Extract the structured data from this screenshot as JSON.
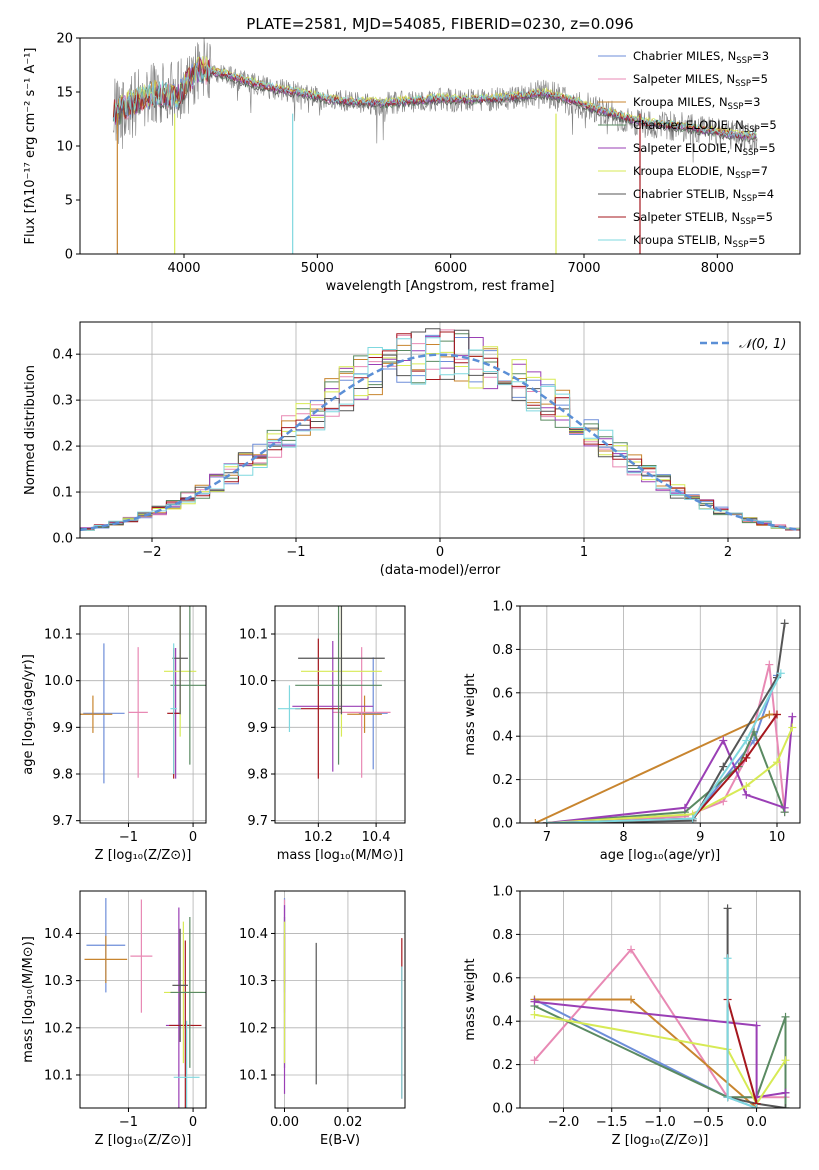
{
  "figure": {
    "title": "PLATE=2581, MJD=54085, FIBERID=0230, z=0.096"
  },
  "models": [
    {
      "name": "Chabrier MILES, N_SSP=3",
      "color": "#6e8ed9"
    },
    {
      "name": "Salpeter MILES, N_SSP=5",
      "color": "#e889b4"
    },
    {
      "name": "Kroupa MILES, N_SSP=3",
      "color": "#c8852f"
    },
    {
      "name": "Chabrier ELODIE, N_SSP=5",
      "color": "#5a8a62"
    },
    {
      "name": "Salpeter ELODIE, N_SSP=5",
      "color": "#9a3fb5"
    },
    {
      "name": "Kroupa ELODIE, N_SSP=7",
      "color": "#d7ea55"
    },
    {
      "name": "Chabrier STELIB, N_SSP=4",
      "color": "#555555"
    },
    {
      "name": "Salpeter STELIB, N_SSP=5",
      "color": "#a5171e"
    },
    {
      "name": "Kroupa STELIB, N_SSP=5",
      "color": "#7fd8df"
    }
  ],
  "chart_data": [
    {
      "id": "spectrum",
      "type": "line",
      "title": "PLATE=2581, MJD=54085, FIBERID=0230, z=0.096",
      "xlabel": "wavelength [Angstrom, rest frame]",
      "ylabel": "Flux [fλ10⁻¹⁷ erg cm⁻² s⁻¹ A⁻¹]",
      "xlim": [
        3220,
        8620
      ],
      "ylim": [
        0,
        20
      ],
      "xticks": [
        4000,
        5000,
        6000,
        7000,
        8000
      ],
      "yticks": [
        0,
        5,
        10,
        15,
        20
      ],
      "legend": "top-right",
      "observed_continuum": {
        "color": "#808080",
        "x": [
          3470,
          3600,
          3800,
          3950,
          4100,
          4300,
          4500,
          4700,
          4900,
          5100,
          5300,
          5500,
          5700,
          5900,
          6100,
          6300,
          6500,
          6700,
          6900,
          7100,
          7300,
          7500,
          7700,
          7900,
          8100,
          8300
        ],
        "y": [
          13.0,
          13.8,
          14.8,
          14.5,
          17.0,
          16.6,
          15.8,
          15.2,
          14.8,
          14.2,
          14.0,
          13.9,
          14.1,
          14.3,
          14.2,
          14.3,
          14.5,
          14.8,
          14.2,
          13.3,
          12.6,
          12.0,
          11.8,
          11.4,
          11.0,
          10.8
        ]
      },
      "model_spectra_y_offsets": [
        0.1,
        0.0,
        0.2,
        -0.1,
        0.0,
        0.3,
        -0.2,
        0.1,
        0.2
      ],
      "dips": [
        {
          "x": 3500,
          "color": "#c8852f"
        },
        {
          "x": 3930,
          "color": "#d7ea55"
        },
        {
          "x": 4815,
          "color": "#7fd8df"
        },
        {
          "x": 6790,
          "color": "#d7ea55"
        },
        {
          "x": 7420,
          "color": "#a5171e"
        }
      ]
    },
    {
      "id": "residuals",
      "type": "line",
      "xlabel": "(data-model)/error",
      "ylabel": "Normed distribution",
      "xlim": [
        -2.5,
        2.5
      ],
      "ylim": [
        0,
        0.47
      ],
      "xticks": [
        -2,
        -1,
        0,
        1,
        2
      ],
      "yticks": [
        0.0,
        0.1,
        0.2,
        0.3,
        0.4
      ],
      "legend": "top-right",
      "legend_label": "𝒩(0, 1)",
      "gaussian_color": "#5b8fd6",
      "bin_width": 0.1,
      "series_jitter_seed": [
        3,
        7,
        11,
        13,
        17,
        19,
        23,
        29,
        31
      ]
    },
    {
      "id": "age_vs_Z",
      "type": "scatter",
      "xlabel": "Z [log₁₀(Z/Z⊙)]",
      "ylabel": "age  [log₁₀(age/yr)]",
      "xlim": [
        -1.75,
        0.2
      ],
      "ylim": [
        9.695,
        10.16
      ],
      "xticks": [
        -1,
        0
      ],
      "yticks": [
        9.7,
        9.8,
        9.9,
        10.0,
        10.1
      ],
      "points": [
        {
          "model": 0,
          "x": -1.38,
          "xerr": 0.32,
          "y": 9.93,
          "yerr": 0.15
        },
        {
          "model": 2,
          "x": -1.55,
          "xerr": 0.3,
          "y": 9.928,
          "yerr": 0.04
        },
        {
          "model": 1,
          "x": -0.85,
          "xerr": 0.15,
          "y": 9.932,
          "yerr": 0.14
        },
        {
          "model": 4,
          "x": -0.27,
          "xerr": 0.05,
          "y": 9.93,
          "yerr": 0.14
        },
        {
          "model": 7,
          "x": -0.3,
          "xerr": 0.1,
          "y": 9.93,
          "yerr": 0.14
        },
        {
          "model": 5,
          "x": -0.2,
          "xerr": 0.25,
          "y": 10.02,
          "yerr": 0.14
        },
        {
          "model": 3,
          "x": -0.05,
          "xerr": 0.3,
          "y": 9.99,
          "yerr": 0.17
        },
        {
          "model": 6,
          "x": -0.2,
          "xerr": 0.12,
          "y": 10.048,
          "yerr": 0.12
        },
        {
          "model": 8,
          "x": -0.3,
          "xerr": 0.05,
          "y": 9.94,
          "yerr": 0.14
        }
      ]
    },
    {
      "id": "age_vs_mass",
      "type": "scatter",
      "xlabel": "mass [log₁₀(M/M⊙)]",
      "ylabel": "",
      "xlim": [
        10.05,
        10.5
      ],
      "ylim": [
        9.695,
        10.16
      ],
      "xticks": [
        10.2,
        10.4
      ],
      "yticks": [
        9.7,
        9.8,
        9.9,
        10.0,
        10.1
      ],
      "points": [
        {
          "model": 0,
          "x": 10.39,
          "xerr": 0.05,
          "y": 9.93,
          "yerr": 0.12
        },
        {
          "model": 2,
          "x": 10.36,
          "xerr": 0.06,
          "y": 9.928,
          "yerr": 0.04
        },
        {
          "model": 1,
          "x": 10.35,
          "xerr": 0.1,
          "y": 9.932,
          "yerr": 0.14
        },
        {
          "model": 4,
          "x": 10.25,
          "xerr": 0.14,
          "y": 9.945,
          "yerr": 0.14
        },
        {
          "model": 7,
          "x": 10.2,
          "xerr": 0.08,
          "y": 9.94,
          "yerr": 0.15
        },
        {
          "model": 5,
          "x": 10.28,
          "xerr": 0.14,
          "y": 10.02,
          "yerr": 0.14
        },
        {
          "model": 3,
          "x": 10.27,
          "xerr": 0.15,
          "y": 9.99,
          "yerr": 0.17
        },
        {
          "model": 6,
          "x": 10.28,
          "xerr": 0.15,
          "y": 10.048,
          "yerr": 0.12
        },
        {
          "model": 8,
          "x": 10.1,
          "xerr": 0.04,
          "y": 9.94,
          "yerr": 0.05
        }
      ]
    },
    {
      "id": "massweight_vs_age",
      "type": "line",
      "xlabel": "age  [log₁₀(age/yr)]",
      "ylabel": "mass weight",
      "xlim": [
        6.65,
        10.3
      ],
      "ylim": [
        0,
        1.0
      ],
      "xticks": [
        7,
        8,
        9,
        10
      ],
      "yticks": [
        0.0,
        0.2,
        0.4,
        0.6,
        0.8,
        1.0
      ],
      "series": [
        {
          "model": 0,
          "x": [
            7.0,
            8.9,
            9.7,
            10.0
          ],
          "y": [
            0.0,
            0.02,
            0.38,
            0.68
          ]
        },
        {
          "model": 1,
          "x": [
            7.0,
            8.8,
            9.3,
            9.6,
            9.9,
            10.1
          ],
          "y": [
            0.0,
            0.03,
            0.1,
            0.3,
            0.73,
            0.05
          ]
        },
        {
          "model": 2,
          "x": [
            6.85,
            9.9,
            10.0
          ],
          "y": [
            0.0,
            0.5,
            0.5
          ]
        },
        {
          "model": 3,
          "x": [
            7.0,
            8.8,
            9.5,
            9.7,
            10.1
          ],
          "y": [
            0.0,
            0.05,
            0.26,
            0.42,
            0.05
          ]
        },
        {
          "model": 4,
          "x": [
            7.0,
            8.8,
            9.3,
            9.6,
            10.1,
            10.2
          ],
          "y": [
            0.0,
            0.07,
            0.38,
            0.13,
            0.07,
            0.49
          ]
        },
        {
          "model": 5,
          "x": [
            7.0,
            8.9,
            9.6,
            10.0,
            10.2
          ],
          "y": [
            0.0,
            0.04,
            0.17,
            0.28,
            0.44
          ]
        },
        {
          "model": 6,
          "x": [
            7.0,
            8.9,
            9.3,
            10.0,
            10.1
          ],
          "y": [
            0.0,
            0.01,
            0.26,
            0.67,
            0.92
          ]
        },
        {
          "model": 7,
          "x": [
            7.0,
            8.9,
            9.6,
            10.0
          ],
          "y": [
            0.0,
            0.02,
            0.3,
            0.5
          ]
        },
        {
          "model": 8,
          "x": [
            7.0,
            8.9,
            9.6,
            10.05
          ],
          "y": [
            0.0,
            0.02,
            0.38,
            0.69
          ]
        }
      ]
    },
    {
      "id": "mass_vs_Z",
      "type": "scatter",
      "xlabel": "Z [log₁₀(Z/Z⊙)]",
      "ylabel": "mass [log₁₀(M/M⊙)]",
      "xlim": [
        -1.75,
        0.2
      ],
      "ylim": [
        10.03,
        10.49
      ],
      "xticks": [
        -1,
        0
      ],
      "yticks": [
        10.1,
        10.2,
        10.3,
        10.4
      ],
      "points": [
        {
          "model": 0,
          "x": -1.35,
          "xerr": 0.3,
          "y": 10.375,
          "yerr": 0.1
        },
        {
          "model": 2,
          "x": -1.35,
          "xerr": 0.33,
          "y": 10.345,
          "yerr": 0.05
        },
        {
          "model": 1,
          "x": -0.8,
          "xerr": 0.17,
          "y": 10.352,
          "yerr": 0.12
        },
        {
          "model": 4,
          "x": -0.22,
          "xerr": 0.2,
          "y": 10.205,
          "yerr": 0.25
        },
        {
          "model": 7,
          "x": -0.12,
          "xerr": 0.25,
          "y": 10.205,
          "yerr": 0.18
        },
        {
          "model": 5,
          "x": -0.15,
          "xerr": 0.3,
          "y": 10.275,
          "yerr": 0.15
        },
        {
          "model": 3,
          "x": -0.05,
          "xerr": 0.3,
          "y": 10.275,
          "yerr": 0.16
        },
        {
          "model": 6,
          "x": -0.2,
          "xerr": 0.12,
          "y": 10.29,
          "yerr": 0.12
        },
        {
          "model": 8,
          "x": -0.1,
          "xerr": 0.2,
          "y": 10.095,
          "yerr": 0.12
        }
      ]
    },
    {
      "id": "mass_vs_EBV",
      "type": "scatter",
      "xlabel": "E(B-V)",
      "ylabel": "",
      "xlim": [
        -0.003,
        0.038
      ],
      "ylim": [
        10.03,
        10.49
      ],
      "xticks": [
        0.0,
        0.02
      ],
      "yticks": [
        10.1,
        10.2,
        10.3,
        10.4
      ],
      "points": [
        {
          "model": 0,
          "x": 0.0,
          "y": 10.375,
          "yerr": 0.1
        },
        {
          "model": 1,
          "x": 0.0,
          "y": 10.352,
          "yerr": 0.12
        },
        {
          "model": 2,
          "x": 0.0,
          "y": 10.345,
          "yerr": 0.05
        },
        {
          "model": 3,
          "x": 0.0,
          "y": 10.275,
          "yerr": 0.16
        },
        {
          "model": 4,
          "x": 0.0,
          "y": 10.26,
          "yerr": 0.2
        },
        {
          "model": 5,
          "x": 0.0,
          "y": 10.275,
          "yerr": 0.15
        },
        {
          "model": 6,
          "x": 0.01,
          "y": 10.23,
          "yerr": 0.15
        },
        {
          "model": 7,
          "x": 0.037,
          "y": 10.22,
          "yerr": 0.17
        },
        {
          "model": 8,
          "x": 0.037,
          "y": 10.19,
          "yerr": 0.14
        }
      ]
    },
    {
      "id": "massweight_vs_Z",
      "type": "line",
      "xlabel": "Z [log₁₀(Z/Z⊙)]",
      "ylabel": "mass weight",
      "xlim": [
        -2.45,
        0.45
      ],
      "ylim": [
        0,
        1.0
      ],
      "xticks": [
        -2.0,
        -1.5,
        -1.0,
        -0.5,
        0.0
      ],
      "yticks": [
        0.0,
        0.2,
        0.4,
        0.6,
        0.8,
        1.0
      ],
      "series": [
        {
          "model": 0,
          "x": [
            -2.3,
            -0.3,
            0.0
          ],
          "y": [
            0.5,
            0.05,
            0.0
          ]
        },
        {
          "model": 1,
          "x": [
            -2.3,
            -1.3,
            -0.3,
            0.0,
            0.3
          ],
          "y": [
            0.22,
            0.73,
            0.05,
            0.05,
            0.05
          ]
        },
        {
          "model": 2,
          "x": [
            -2.3,
            -1.3,
            0.0
          ],
          "y": [
            0.5,
            0.5,
            0.0
          ]
        },
        {
          "model": 3,
          "x": [
            -2.3,
            -0.3,
            0.0,
            0.3,
            0.3
          ],
          "y": [
            0.47,
            0.05,
            0.05,
            0.42,
            0.0
          ]
        },
        {
          "model": 4,
          "x": [
            -2.3,
            0.0,
            0.0,
            0.3,
            0.3
          ],
          "y": [
            0.49,
            0.38,
            0.05,
            0.07,
            0.07
          ]
        },
        {
          "model": 5,
          "x": [
            -2.3,
            -0.3,
            0.0,
            0.3
          ],
          "y": [
            0.43,
            0.27,
            0.02,
            0.22
          ]
        },
        {
          "model": 6,
          "x": [
            -0.3,
            -0.3,
            0.0,
            0.3
          ],
          "y": [
            0.92,
            0.05,
            0.02,
            0.0
          ]
        },
        {
          "model": 7,
          "x": [
            -0.3,
            0.0
          ],
          "y": [
            0.5,
            0.02
          ]
        },
        {
          "model": 8,
          "x": [
            -0.3,
            -0.3,
            0.0
          ],
          "y": [
            0.69,
            0.05,
            0.0
          ]
        }
      ]
    }
  ]
}
